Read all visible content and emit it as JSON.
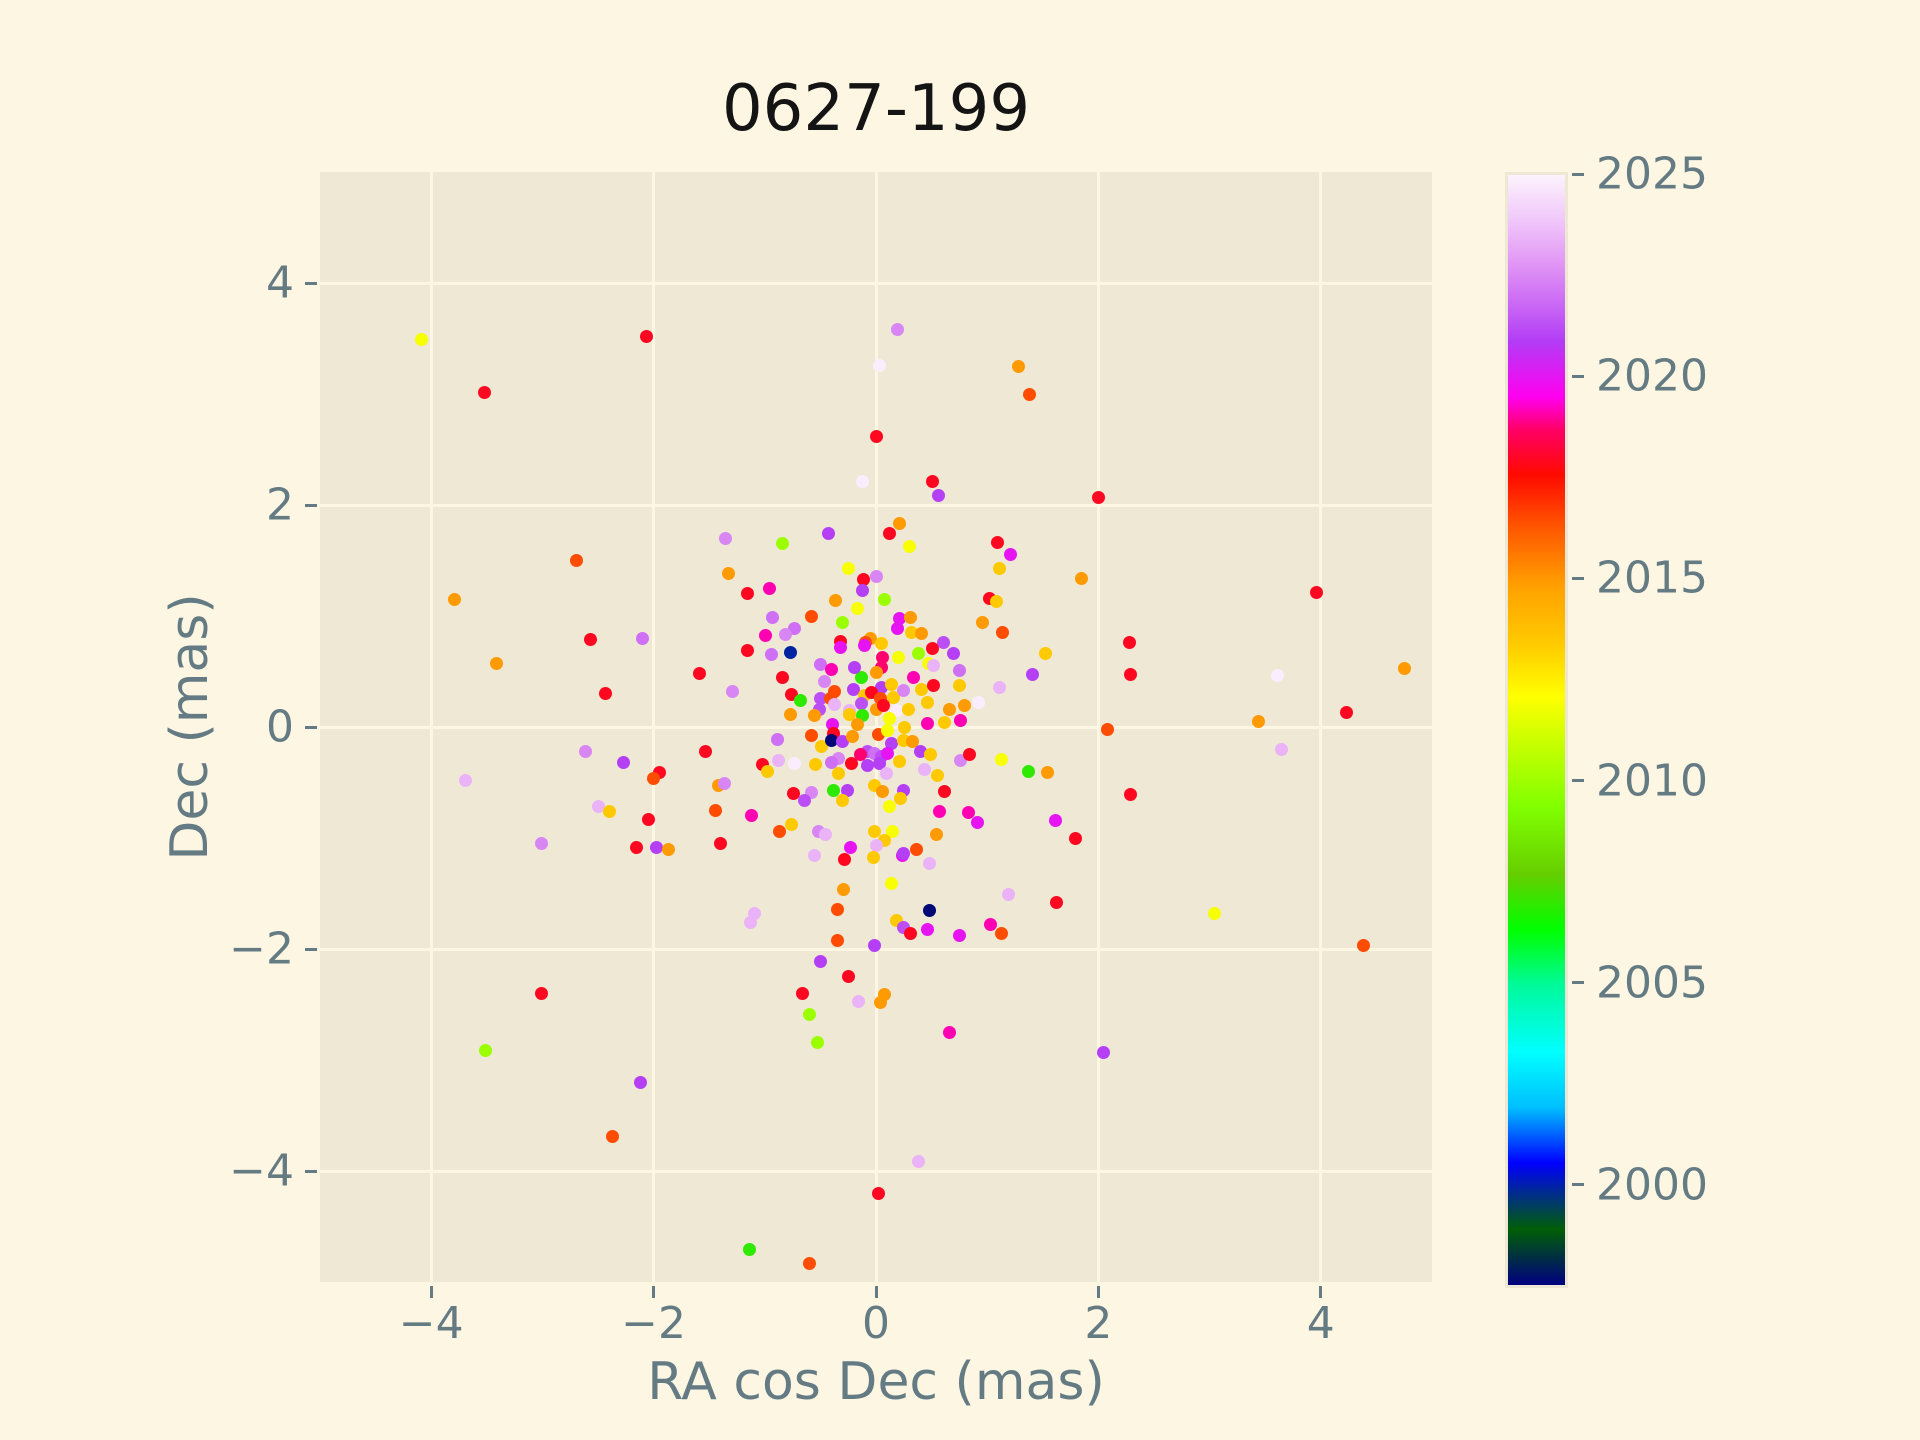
{
  "figure": {
    "title": "0627-199"
  },
  "colors": {
    "figure_bg": "#FDF6E3",
    "axes_bg": "#EEE8D5",
    "grid": "#FDF6E3",
    "tick_text": "#657B83",
    "title_text": "#141414",
    "tick_mark": "#657B83",
    "colorbar_outline": "#EDE7D4"
  },
  "chart_data": {
    "type": "scatter",
    "title": "0627-199",
    "xlabel": "RA cos Dec (mas)",
    "ylabel": "Dec (mas)",
    "xlim": [
      -5,
      5
    ],
    "ylim": [
      -5,
      5
    ],
    "grid": true,
    "xticks": {
      "values": [
        -4,
        -2,
        0,
        2,
        4
      ],
      "labels": [
        "−4",
        "−2",
        "0",
        "2",
        "4"
      ]
    },
    "yticks": {
      "values": [
        -4,
        -2,
        0,
        2,
        4
      ],
      "labels": [
        "−4",
        "−2",
        "0",
        "2",
        "4"
      ]
    },
    "colorbar": {
      "position": "right",
      "vmin": 1997.6,
      "vmax": 2025.05,
      "tick_values": [
        2000,
        2005,
        2010,
        2015,
        2020,
        2025
      ],
      "tick_labels": [
        "2000",
        "2005",
        "2010",
        "2015",
        "2020",
        "2025"
      ],
      "colormap": "gist_ncar",
      "stops": [
        [
          0.0,
          "#000080"
        ],
        [
          0.05,
          "#005F06"
        ],
        [
          0.11,
          "#0000FF"
        ],
        [
          0.16,
          "#00BFFF"
        ],
        [
          0.21,
          "#00FFFF"
        ],
        [
          0.27,
          "#00FA9B"
        ],
        [
          0.32,
          "#00FF00"
        ],
        [
          0.37,
          "#66CE00"
        ],
        [
          0.43,
          "#80FF00"
        ],
        [
          0.5,
          "#D7FF00"
        ],
        [
          0.53,
          "#FFFF00"
        ],
        [
          0.58,
          "#FFC800"
        ],
        [
          0.63,
          "#FFA000"
        ],
        [
          0.68,
          "#FF5A00"
        ],
        [
          0.73,
          "#FF0A00"
        ],
        [
          0.77,
          "#FF0064"
        ],
        [
          0.8,
          "#FF00F0"
        ],
        [
          0.85,
          "#B23CF5"
        ],
        [
          0.88,
          "#C864F5"
        ],
        [
          0.92,
          "#E196F5"
        ],
        [
          0.96,
          "#F0C8FA"
        ],
        [
          1.0,
          "#FDF3FD"
        ]
      ]
    },
    "points_format": [
      "ra_cos_dec_mas",
      "dec_mas",
      "epoch_year"
    ],
    "points": [
      [
        -4.09,
        3.49,
        2012
      ],
      [
        -2.06,
        3.52,
        2018
      ],
      [
        -3.52,
        3.01,
        2018
      ],
      [
        -2.69,
        1.5,
        2016.5
      ],
      [
        -3.79,
        1.15,
        2015
      ],
      [
        -2.57,
        0.79,
        2018
      ],
      [
        -2.1,
        0.8,
        2022
      ],
      [
        -3.41,
        0.57,
        2015
      ],
      [
        -2.43,
        0.3,
        2018
      ],
      [
        -0.12,
        2.21,
        2024.9
      ],
      [
        0,
        2.62,
        2018
      ],
      [
        -1.35,
        1.7,
        2022.5
      ],
      [
        -0.84,
        1.65,
        2010
      ],
      [
        -0.43,
        1.74,
        2021
      ],
      [
        -1.33,
        1.38,
        2015
      ],
      [
        -1.16,
        1.2,
        2018
      ],
      [
        -0.96,
        1.25,
        2019.2
      ],
      [
        -0.93,
        0.99,
        2022
      ],
      [
        -0.99,
        0.82,
        2019.2
      ],
      [
        -1.16,
        0.69,
        2018
      ],
      [
        -0.94,
        0.65,
        2022
      ],
      [
        -1.59,
        0.48,
        2018
      ],
      [
        -1.29,
        0.32,
        2022.5
      ],
      [
        0.19,
        3.58,
        2022.5
      ],
      [
        0.03,
        3.26,
        2024.9
      ],
      [
        1.28,
        3.25,
        2015
      ],
      [
        1.38,
        3,
        2016.5
      ],
      [
        0.51,
        2.21,
        2018
      ],
      [
        0.56,
        2.09,
        2021
      ],
      [
        2,
        2.07,
        2018
      ],
      [
        0.21,
        1.83,
        2015
      ],
      [
        0.12,
        1.74,
        2018
      ],
      [
        0.3,
        1.63,
        2012
      ],
      [
        1.09,
        1.66,
        2018
      ],
      [
        1.21,
        1.55,
        2020
      ],
      [
        1.11,
        1.43,
        2013.5
      ],
      [
        1.85,
        1.34,
        2015
      ],
      [
        3.96,
        1.21,
        2018
      ],
      [
        1.02,
        1.16,
        2018
      ],
      [
        1.08,
        1.13,
        2013.5
      ],
      [
        0.96,
        0.94,
        2015
      ],
      [
        1.14,
        0.85,
        2016.5
      ],
      [
        1.52,
        0.66,
        2013.5
      ],
      [
        1.41,
        0.47,
        2021
      ],
      [
        1.11,
        0.36,
        2023.5
      ],
      [
        2.28,
        0.76,
        2018
      ],
      [
        2.29,
        0.47,
        2018
      ],
      [
        3.61,
        0.46,
        2024.9
      ],
      [
        4.75,
        0.53,
        2015
      ],
      [
        4.23,
        0.13,
        2018
      ],
      [
        3.44,
        0.05,
        2015
      ],
      [
        2.08,
        -0.02,
        2016.5
      ],
      [
        0.92,
        0.22,
        2024.9
      ],
      [
        -2.61,
        -0.22,
        2022.5
      ],
      [
        -2.27,
        -0.32,
        2021
      ],
      [
        -3.69,
        -0.48,
        2023.5
      ],
      [
        -1.95,
        -0.41,
        2018
      ],
      [
        -2,
        -0.46,
        2016.5
      ],
      [
        -2.5,
        -0.72,
        2023.5
      ],
      [
        -2.4,
        -0.76,
        2013.5
      ],
      [
        -2.05,
        -0.83,
        2018
      ],
      [
        -3.01,
        -1.05,
        2022.5
      ],
      [
        -2.15,
        -1.09,
        2018
      ],
      [
        -1.97,
        -1.09,
        2021
      ],
      [
        -1.87,
        -1.1,
        2015
      ],
      [
        -1.4,
        -1.05,
        2018
      ],
      [
        -1.12,
        -0.8,
        2019.2
      ],
      [
        -1.44,
        -0.75,
        2016.5
      ],
      [
        -1.42,
        -0.53,
        2015
      ],
      [
        -1.36,
        -0.51,
        2022.5
      ],
      [
        -0.87,
        -0.94,
        2016.5
      ],
      [
        -0.28,
        -1.19,
        2018
      ],
      [
        -0.29,
        -1.46,
        2015
      ],
      [
        -0.35,
        -1.64,
        2016.5
      ],
      [
        -1.09,
        -1.68,
        2023.5
      ],
      [
        -1.13,
        -1.76,
        2023.5
      ],
      [
        -0.35,
        -1.92,
        2016.5
      ],
      [
        -0.5,
        -2.11,
        2021
      ],
      [
        -0.25,
        -2.25,
        2018
      ],
      [
        -0.66,
        -2.4,
        2018
      ],
      [
        -0.16,
        -2.47,
        2023.5
      ],
      [
        -0.6,
        -2.59,
        2010
      ],
      [
        -0.53,
        -2.84,
        2010
      ],
      [
        -3.01,
        -2.4,
        2018
      ],
      [
        -3.51,
        -2.91,
        2010
      ],
      [
        -2.12,
        -3.2,
        2021
      ],
      [
        -2.37,
        -3.69,
        2016.5
      ],
      [
        -1.14,
        -4.71,
        2007
      ],
      [
        -0.6,
        -4.83,
        2016.5
      ],
      [
        -1.53,
        -0.22,
        2018
      ],
      [
        -1.02,
        -0.34,
        2018
      ],
      [
        -0.98,
        -0.4,
        2013.5
      ],
      [
        -0.89,
        -0.11,
        2022
      ],
      [
        3.65,
        -0.2,
        2023.5
      ],
      [
        2.29,
        -0.61,
        2018
      ],
      [
        3.04,
        -1.68,
        2012
      ],
      [
        4.38,
        -1.97,
        2016.5
      ],
      [
        0.66,
        -2.75,
        2019.2
      ],
      [
        2.05,
        -2.93,
        2021
      ],
      [
        0.38,
        -3.91,
        2023.5
      ],
      [
        0.02,
        -4.2,
        2018
      ],
      [
        1.13,
        -0.29,
        2012
      ],
      [
        1.37,
        -0.4,
        2007
      ],
      [
        1.54,
        -0.41,
        2015
      ],
      [
        1.61,
        -0.84,
        2020
      ],
      [
        1.79,
        -1,
        2018
      ],
      [
        1.62,
        -1.58,
        2018
      ],
      [
        1.03,
        -1.78,
        2019.2
      ],
      [
        1.13,
        -1.86,
        2016.5
      ],
      [
        0.75,
        -1.88,
        2020
      ],
      [
        0.48,
        -1.65,
        1997.7
      ],
      [
        0.18,
        -1.74,
        2013.5
      ],
      [
        0.25,
        -1.81,
        2021.3
      ],
      [
        0.31,
        -1.86,
        2018
      ],
      [
        0.46,
        -1.82,
        2020
      ],
      [
        0.14,
        -1.41,
        2012
      ],
      [
        1.19,
        -1.51,
        2023.5
      ],
      [
        0.91,
        -0.86,
        2020
      ],
      [
        0.24,
        -1.16,
        2020
      ],
      [
        0.48,
        -1.23,
        2023.5
      ],
      [
        0.04,
        -2.48,
        2015
      ],
      [
        0.08,
        -2.41,
        2015
      ],
      [
        -0.01,
        -1.97,
        2021
      ],
      [
        -0.25,
        1.43,
        2012
      ],
      [
        -0.11,
        1.33,
        2018
      ],
      [
        0,
        1.36,
        2022.5
      ],
      [
        -0.12,
        1.23,
        2021
      ],
      [
        -0.36,
        1.14,
        2015
      ],
      [
        -0.17,
        1.07,
        2012
      ],
      [
        0.08,
        1.15,
        2010
      ],
      [
        -0.58,
        1,
        2016.5
      ],
      [
        -0.3,
        0.94,
        2010
      ],
      [
        0.21,
        0.98,
        2020
      ],
      [
        0.31,
        0.99,
        2015
      ],
      [
        -0.73,
        0.89,
        2022
      ],
      [
        -0.81,
        0.83,
        2022.5
      ],
      [
        0.19,
        0.89,
        2020
      ],
      [
        0.32,
        0.85,
        2013.5
      ],
      [
        0.41,
        0.84,
        2015
      ],
      [
        -0.05,
        0.8,
        2015
      ],
      [
        -0.09,
        0.76,
        2016.5
      ],
      [
        -0.32,
        0.77,
        2018
      ],
      [
        -0.32,
        0.72,
        2020
      ],
      [
        0.05,
        0.75,
        2013.5
      ],
      [
        -0.1,
        0.73,
        2020
      ],
      [
        0.61,
        0.76,
        2021.3
      ],
      [
        0.51,
        0.71,
        2018
      ],
      [
        0.38,
        0.66,
        2010
      ],
      [
        0.2,
        0.63,
        2012
      ],
      [
        0.06,
        0.63,
        2018.8
      ],
      [
        -0.5,
        0.56,
        2022
      ],
      [
        -0.4,
        0.52,
        2019.2
      ],
      [
        -0.77,
        0.67,
        2000
      ],
      [
        0.05,
        0.54,
        2018.8
      ],
      [
        0,
        0.49,
        2015
      ],
      [
        0.47,
        0.57,
        2012
      ],
      [
        0.52,
        0.55,
        2023.5
      ],
      [
        0.7,
        0.66,
        2021
      ],
      [
        0.75,
        0.51,
        2022
      ],
      [
        0.34,
        0.45,
        2019.2
      ],
      [
        -0.13,
        0.45,
        2007
      ],
      [
        -0.46,
        0.41,
        2022.5
      ],
      [
        0.05,
        0.36,
        2021
      ],
      [
        0.14,
        0.38,
        2013.5
      ],
      [
        -0.2,
        0.34,
        2021
      ],
      [
        -0.84,
        0.45,
        2018
      ],
      [
        -0.76,
        0.29,
        2018
      ],
      [
        -0.37,
        0.32,
        2016.5
      ],
      [
        -0.5,
        0.26,
        2021.3
      ],
      [
        -0.41,
        0.26,
        2016.5
      ],
      [
        -0.1,
        0.28,
        2013.5
      ],
      [
        -0.04,
        0.31,
        2018
      ],
      [
        0.04,
        0.26,
        2016.5
      ],
      [
        0.16,
        0.27,
        2013.5
      ],
      [
        0.25,
        0.33,
        2022.5
      ],
      [
        0.41,
        0.34,
        2013.5
      ],
      [
        0.52,
        0.37,
        2018
      ],
      [
        0.75,
        0.37,
        2013.5
      ],
      [
        0.8,
        0.19,
        2015
      ],
      [
        -0.13,
        0.21,
        2021.3
      ],
      [
        0,
        0.16,
        2015
      ],
      [
        -0.24,
        0.15,
        2023.5
      ],
      [
        0.07,
        0.19,
        2018
      ],
      [
        0.18,
        0.15,
        2024.9
      ],
      [
        0.29,
        0.16,
        2013.5
      ],
      [
        -0.19,
        0.54,
        2021
      ],
      [
        -0.68,
        0.24,
        2007
      ],
      [
        -0.51,
        0.16,
        2021.3
      ],
      [
        -0.37,
        0.2,
        2023.5
      ],
      [
        0.46,
        0.22,
        2013.5
      ],
      [
        0.66,
        0.16,
        2015
      ],
      [
        -0.77,
        0.11,
        2015
      ],
      [
        -0.55,
        0.1,
        2015
      ],
      [
        -0.24,
        0.11,
        2013.5
      ],
      [
        -0.12,
        0.1,
        2007
      ],
      [
        0.12,
        0.08,
        2012
      ],
      [
        -0.39,
        0.02,
        2020
      ],
      [
        -0.17,
        0.02,
        2015
      ],
      [
        0.26,
        0,
        2013.5
      ],
      [
        0.46,
        0.03,
        2019.2
      ],
      [
        0.62,
        0.04,
        2013.5
      ],
      [
        0.76,
        0.06,
        2019.2
      ],
      [
        -0.58,
        -0.08,
        2016.5
      ],
      [
        -0.49,
        -0.18,
        2013.5
      ],
      [
        -0.38,
        -0.06,
        2018
      ],
      [
        -0.4,
        -0.12,
        1997.7
      ],
      [
        -0.3,
        -0.13,
        2021
      ],
      [
        -0.21,
        -0.09,
        2015
      ],
      [
        0.02,
        -0.07,
        2016.5
      ],
      [
        0.1,
        -0.03,
        2012
      ],
      [
        0.14,
        -0.15,
        2021
      ],
      [
        0.25,
        -0.12,
        2013.5
      ],
      [
        0.33,
        -0.13,
        2015
      ],
      [
        0.4,
        -0.22,
        2021
      ],
      [
        0.49,
        -0.25,
        2013.5
      ],
      [
        -0.08,
        -0.22,
        2021.3
      ],
      [
        -0.14,
        -0.25,
        2018.8
      ],
      [
        -0.01,
        -0.24,
        2022
      ],
      [
        0.05,
        -0.27,
        2021.3
      ],
      [
        -0.34,
        -0.28,
        2022.5
      ],
      [
        -0.4,
        -0.32,
        2022
      ],
      [
        0.1,
        -0.24,
        2020
      ],
      [
        0.21,
        -0.31,
        2013.5
      ],
      [
        -0.73,
        -0.33,
        2024.9
      ],
      [
        -0.54,
        -0.34,
        2013.5
      ],
      [
        -0.34,
        -0.42,
        2013.5
      ],
      [
        -0.22,
        -0.33,
        2018
      ],
      [
        -0.08,
        -0.35,
        2021
      ],
      [
        0.03,
        -0.33,
        2021
      ],
      [
        0.09,
        -0.42,
        2023.5
      ],
      [
        0.44,
        -0.38,
        2023.5
      ],
      [
        0.55,
        -0.44,
        2013.5
      ],
      [
        0.76,
        -0.3,
        2022.5
      ],
      [
        0.84,
        -0.25,
        2018
      ],
      [
        -0.74,
        -0.6,
        2018
      ],
      [
        -0.58,
        -0.59,
        2022.5
      ],
      [
        -0.64,
        -0.66,
        2021.3
      ],
      [
        -0.38,
        -0.57,
        2007
      ],
      [
        -0.26,
        -0.57,
        2021
      ],
      [
        -0.3,
        -0.66,
        2013.5
      ],
      [
        -0.01,
        -0.53,
        2013.5
      ],
      [
        0.06,
        -0.58,
        2015
      ],
      [
        0.12,
        -0.72,
        2012
      ],
      [
        0.25,
        -0.57,
        2021
      ],
      [
        0.22,
        -0.64,
        2013.5
      ],
      [
        0.62,
        -0.58,
        2018
      ],
      [
        0.57,
        -0.76,
        2019.2
      ],
      [
        -0.76,
        -0.88,
        2013.5
      ],
      [
        -0.52,
        -0.94,
        2022.5
      ],
      [
        -0.45,
        -0.97,
        2023.5
      ],
      [
        -0.01,
        -0.94,
        2013.5
      ],
      [
        0.15,
        -0.94,
        2012
      ],
      [
        0.08,
        -1.02,
        2013.5
      ],
      [
        -0.23,
        -1.09,
        2020
      ],
      [
        0,
        -1.07,
        2023.5
      ],
      [
        0.25,
        -1.14,
        2021
      ],
      [
        0.36,
        -1.1,
        2016.5
      ],
      [
        0.83,
        -0.77,
        2019.2
      ],
      [
        -0.02,
        -1.18,
        2013.5
      ],
      [
        0.54,
        -0.97,
        2015
      ],
      [
        -0.88,
        -0.3,
        2023.5
      ],
      [
        -0.55,
        -1.16,
        2023.5
      ]
    ]
  }
}
